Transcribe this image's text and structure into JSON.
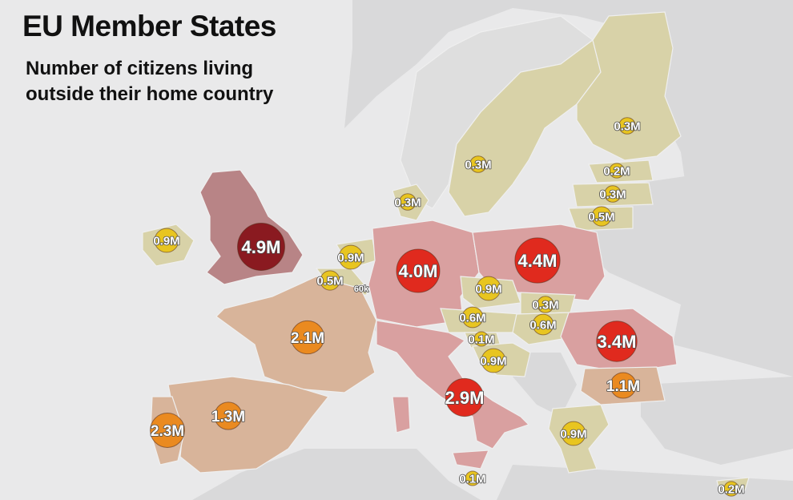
{
  "title": "EU Member States",
  "subtitle_lines": [
    "Number of citizens living",
    "outside their home country"
  ],
  "colors": {
    "sea": "#e9e9ea",
    "non_eu_land": "#d9d9da",
    "eu_low": "#d8d2a8",
    "eu_mid": "#d8b49a",
    "eu_high": "#d9a0a0",
    "uk": "#b88486",
    "bubble_small": "#e8c520",
    "bubble_medium": "#ea8a20",
    "bubble_large": "#e02a1e",
    "bubble_xlarge": "#8a1a20"
  },
  "bubbles": [
    {
      "country": "United Kingdom",
      "label": "4.9M",
      "value": 4.9
    },
    {
      "country": "Poland",
      "label": "4.4M",
      "value": 4.4
    },
    {
      "country": "Germany",
      "label": "4.0M",
      "value": 4.0
    },
    {
      "country": "Romania",
      "label": "3.4M",
      "value": 3.4
    },
    {
      "country": "Italy",
      "label": "2.9M",
      "value": 2.9
    },
    {
      "country": "Portugal",
      "label": "2.3M",
      "value": 2.3
    },
    {
      "country": "France",
      "label": "2.1M",
      "value": 2.1
    },
    {
      "country": "Spain",
      "label": "1.3M",
      "value": 1.3
    },
    {
      "country": "Bulgaria",
      "label": "1.1M",
      "value": 1.1
    },
    {
      "country": "Ireland",
      "label": "0.9M",
      "value": 0.9
    },
    {
      "country": "Netherlands",
      "label": "0.9M",
      "value": 0.9
    },
    {
      "country": "Czech Republic",
      "label": "0.9M",
      "value": 0.9
    },
    {
      "country": "Croatia",
      "label": "0.9M",
      "value": 0.9
    },
    {
      "country": "Greece",
      "label": "0.9M",
      "value": 0.9
    },
    {
      "country": "Austria",
      "label": "0.6M",
      "value": 0.6
    },
    {
      "country": "Hungary",
      "label": "0.6M",
      "value": 0.6
    },
    {
      "country": "Belgium",
      "label": "0.5M",
      "value": 0.5
    },
    {
      "country": "Lithuania",
      "label": "0.5M",
      "value": 0.5
    },
    {
      "country": "Finland",
      "label": "0.3M",
      "value": 0.3
    },
    {
      "country": "Sweden",
      "label": "0.3M",
      "value": 0.3
    },
    {
      "country": "Denmark",
      "label": "0.3M",
      "value": 0.3
    },
    {
      "country": "Latvia",
      "label": "0.3M",
      "value": 0.3
    },
    {
      "country": "Slovakia",
      "label": "0.3M",
      "value": 0.3
    },
    {
      "country": "Estonia",
      "label": "0.2M",
      "value": 0.2
    },
    {
      "country": "Cyprus",
      "label": "0.2M",
      "value": 0.2
    },
    {
      "country": "Slovenia",
      "label": "0.1M",
      "value": 0.1
    },
    {
      "country": "Malta",
      "label": "0.1M",
      "value": 0.1
    },
    {
      "country": "Luxembourg",
      "label": "60k",
      "value": 0.06
    }
  ]
}
